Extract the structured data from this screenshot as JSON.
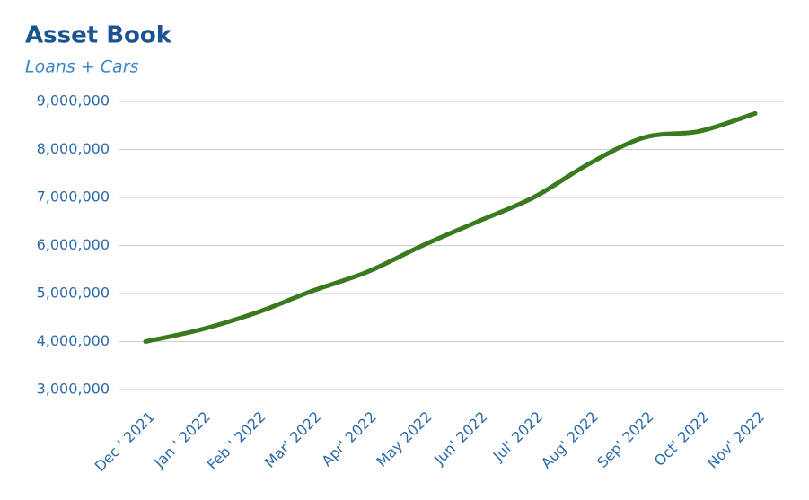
{
  "chart_data": {
    "type": "line",
    "title": "Asset Book",
    "subtitle": "Loans + Cars",
    "categories": [
      "Dec ' 2021",
      "Jan ' 2022",
      "Feb ' 2022",
      "Mar' 2022",
      "Apr' 2022",
      "May 2022",
      "Jun' 2022",
      "Jul' 2022",
      "Aug' 2022",
      "Sep' 2022",
      "Oct' 2022",
      "Nov' 2022"
    ],
    "values": [
      4000000,
      4250000,
      4600000,
      5050000,
      5450000,
      6000000,
      6500000,
      7000000,
      7700000,
      8250000,
      8380000,
      8750000
    ],
    "color": "#3a7a1e",
    "ylim": [
      3000000,
      9000000
    ],
    "yticks": [
      {
        "value": 3000000,
        "label": "3,000,000"
      },
      {
        "value": 4000000,
        "label": "4,000,000"
      },
      {
        "value": 5000000,
        "label": "5,000,000"
      },
      {
        "value": 6000000,
        "label": "6,000,000"
      },
      {
        "value": 7000000,
        "label": "7,000,000"
      },
      {
        "value": 8000000,
        "label": "8,000,000"
      },
      {
        "value": 9000000,
        "label": "9,000,000"
      }
    ],
    "grid": true
  }
}
